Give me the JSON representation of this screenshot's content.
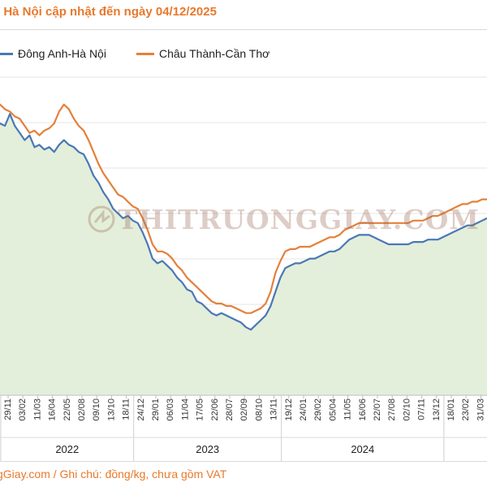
{
  "header": {
    "title": "i Hà Nội cập nhật đến ngày 04/12/2025"
  },
  "watermark": {
    "text": "THITRUONGGIAY.COM"
  },
  "footer": {
    "text": "gGiay.com / Ghi chú: đồng/kg, chưa gồm VAT"
  },
  "colors": {
    "dong_anh": "#4a78b5",
    "chau_thanh": "#e4803a",
    "area_fill": "#e3efda",
    "grid": "#e6e6e6",
    "title": "#e8792b"
  },
  "chart_data": {
    "type": "line",
    "title": "",
    "xlabel": "",
    "ylabel": "",
    "legend_position": "top",
    "grid": true,
    "area_under_lower_series": true,
    "y_axis_labels_visible": false,
    "x_tick_labels": [
      "29/11",
      "03/02",
      "11/03",
      "16/04",
      "22/05",
      "02/08",
      "09/10",
      "13/10",
      "18/11",
      "24/12",
      "29/01",
      "06/03",
      "11/04",
      "17/05",
      "22/06",
      "28/07",
      "02/09",
      "08/10",
      "13/11",
      "19/12",
      "24/01",
      "29/02",
      "05/04",
      "11/05",
      "16/06",
      "22/07",
      "27/08",
      "02/10",
      "07/11",
      "13/12",
      "18/01",
      "23/02",
      "31/03"
    ],
    "year_groups": [
      {
        "label": "2022",
        "from_tick": 0,
        "to_tick": 9
      },
      {
        "label": "2023",
        "from_tick": 9,
        "to_tick": 19
      },
      {
        "label": "2024",
        "from_tick": 19,
        "to_tick": 30
      }
    ],
    "x_index_range": [
      0,
      100
    ],
    "ylim": [
      0,
      100
    ],
    "series": [
      {
        "name": "Đông Anh-Hà Nội",
        "points": [
          [
            0,
            86
          ],
          [
            1,
            89
          ],
          [
            2,
            88
          ],
          [
            3,
            93
          ],
          [
            4,
            88
          ],
          [
            5,
            85
          ],
          [
            6,
            82
          ],
          [
            7,
            84
          ],
          [
            8,
            79
          ],
          [
            9,
            80
          ],
          [
            10,
            78
          ],
          [
            11,
            79
          ],
          [
            12,
            77
          ],
          [
            13,
            80
          ],
          [
            14,
            82
          ],
          [
            15,
            80
          ],
          [
            16,
            79
          ],
          [
            17,
            77
          ],
          [
            18,
            76
          ],
          [
            19,
            72
          ],
          [
            20,
            67
          ],
          [
            21,
            64
          ],
          [
            22,
            60
          ],
          [
            23,
            57
          ],
          [
            24,
            53
          ],
          [
            25,
            51
          ],
          [
            26,
            49
          ],
          [
            27,
            50
          ],
          [
            28,
            48
          ],
          [
            29,
            47
          ],
          [
            30,
            43
          ],
          [
            31,
            38
          ],
          [
            32,
            32
          ],
          [
            33,
            30
          ],
          [
            34,
            31
          ],
          [
            35,
            29
          ],
          [
            36,
            27
          ],
          [
            37,
            24
          ],
          [
            38,
            22
          ],
          [
            39,
            19
          ],
          [
            40,
            18
          ],
          [
            41,
            14
          ],
          [
            42,
            13
          ],
          [
            43,
            11
          ],
          [
            44,
            9
          ],
          [
            45,
            8
          ],
          [
            46,
            9
          ],
          [
            47,
            8
          ],
          [
            48,
            7
          ],
          [
            49,
            6
          ],
          [
            50,
            5
          ],
          [
            51,
            3
          ],
          [
            52,
            2
          ],
          [
            53,
            4
          ],
          [
            54,
            6
          ],
          [
            55,
            8
          ],
          [
            56,
            12
          ],
          [
            57,
            18
          ],
          [
            58,
            24
          ],
          [
            59,
            28
          ],
          [
            60,
            29
          ],
          [
            61,
            30
          ],
          [
            62,
            30
          ],
          [
            63,
            31
          ],
          [
            64,
            32
          ],
          [
            65,
            32
          ],
          [
            66,
            33
          ],
          [
            67,
            34
          ],
          [
            68,
            35
          ],
          [
            69,
            35
          ],
          [
            70,
            36
          ],
          [
            71,
            38
          ],
          [
            72,
            40
          ],
          [
            73,
            41
          ],
          [
            74,
            42
          ],
          [
            75,
            42
          ],
          [
            76,
            42
          ],
          [
            77,
            41
          ],
          [
            78,
            40
          ],
          [
            79,
            39
          ],
          [
            80,
            38
          ],
          [
            81,
            38
          ],
          [
            82,
            38
          ],
          [
            83,
            38
          ],
          [
            84,
            38
          ],
          [
            85,
            39
          ],
          [
            86,
            39
          ],
          [
            87,
            39
          ],
          [
            88,
            40
          ],
          [
            89,
            40
          ],
          [
            90,
            40
          ],
          [
            91,
            41
          ],
          [
            92,
            42
          ],
          [
            93,
            43
          ],
          [
            94,
            44
          ],
          [
            95,
            45
          ],
          [
            96,
            46
          ],
          [
            97,
            46
          ],
          [
            98,
            47
          ],
          [
            99,
            48
          ],
          [
            100,
            49
          ]
        ]
      },
      {
        "name": "Châu Thành-Cần Thơ",
        "points": [
          [
            0,
            95
          ],
          [
            1,
            97
          ],
          [
            2,
            95
          ],
          [
            3,
            94
          ],
          [
            4,
            92
          ],
          [
            5,
            91
          ],
          [
            6,
            88
          ],
          [
            7,
            85
          ],
          [
            8,
            86
          ],
          [
            9,
            84
          ],
          [
            10,
            86
          ],
          [
            11,
            87
          ],
          [
            12,
            89
          ],
          [
            13,
            94
          ],
          [
            14,
            97
          ],
          [
            15,
            95
          ],
          [
            16,
            91
          ],
          [
            17,
            88
          ],
          [
            18,
            86
          ],
          [
            19,
            82
          ],
          [
            20,
            77
          ],
          [
            21,
            72
          ],
          [
            22,
            68
          ],
          [
            23,
            65
          ],
          [
            24,
            62
          ],
          [
            25,
            59
          ],
          [
            26,
            58
          ],
          [
            27,
            56
          ],
          [
            28,
            54
          ],
          [
            29,
            53
          ],
          [
            30,
            49
          ],
          [
            31,
            44
          ],
          [
            32,
            38
          ],
          [
            33,
            35
          ],
          [
            34,
            35
          ],
          [
            35,
            34
          ],
          [
            36,
            32
          ],
          [
            37,
            29
          ],
          [
            38,
            27
          ],
          [
            39,
            24
          ],
          [
            40,
            22
          ],
          [
            41,
            20
          ],
          [
            42,
            18
          ],
          [
            43,
            16
          ],
          [
            44,
            14
          ],
          [
            45,
            13
          ],
          [
            46,
            13
          ],
          [
            47,
            12
          ],
          [
            48,
            12
          ],
          [
            49,
            11
          ],
          [
            50,
            10
          ],
          [
            51,
            9
          ],
          [
            52,
            9
          ],
          [
            53,
            10
          ],
          [
            54,
            11
          ],
          [
            55,
            13
          ],
          [
            56,
            18
          ],
          [
            57,
            26
          ],
          [
            58,
            31
          ],
          [
            59,
            35
          ],
          [
            60,
            36
          ],
          [
            61,
            36
          ],
          [
            62,
            37
          ],
          [
            63,
            37
          ],
          [
            64,
            37
          ],
          [
            65,
            38
          ],
          [
            66,
            39
          ],
          [
            67,
            40
          ],
          [
            68,
            41
          ],
          [
            69,
            41
          ],
          [
            70,
            42
          ],
          [
            71,
            44
          ],
          [
            72,
            45
          ],
          [
            73,
            46
          ],
          [
            74,
            47
          ],
          [
            75,
            47
          ],
          [
            76,
            47
          ],
          [
            77,
            47
          ],
          [
            78,
            47
          ],
          [
            79,
            47
          ],
          [
            80,
            47
          ],
          [
            81,
            47
          ],
          [
            82,
            47
          ],
          [
            83,
            47
          ],
          [
            84,
            47
          ],
          [
            85,
            48
          ],
          [
            86,
            48
          ],
          [
            87,
            48
          ],
          [
            88,
            49
          ],
          [
            89,
            50
          ],
          [
            90,
            50
          ],
          [
            91,
            51
          ],
          [
            92,
            52
          ],
          [
            93,
            53
          ],
          [
            94,
            54
          ],
          [
            95,
            55
          ],
          [
            96,
            55
          ],
          [
            97,
            56
          ],
          [
            98,
            56
          ],
          [
            99,
            57
          ],
          [
            100,
            57
          ]
        ]
      }
    ]
  }
}
